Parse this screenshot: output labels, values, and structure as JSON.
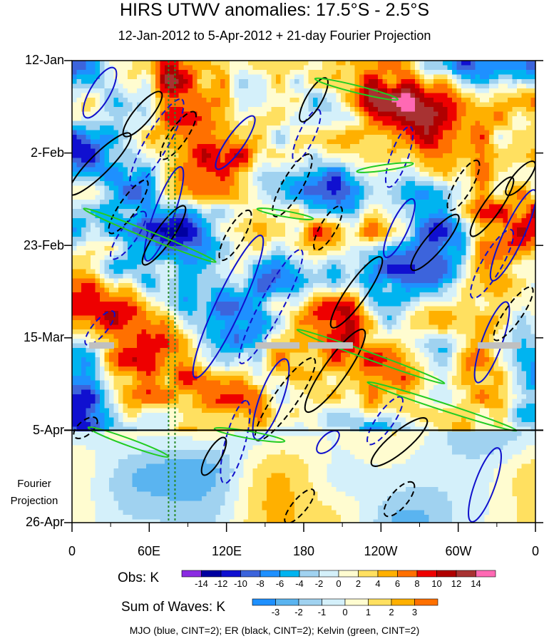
{
  "chart_data": {
    "type": "heatmap",
    "title": "HIRS UTWV anomalies: 17.5°S - 2.5°S",
    "subtitle": "12-Jan-2012 to 5-Apr-2012 + 21-day Fourier Projection",
    "y_tick_labels": [
      "12-Jan",
      "2-Feb",
      "23-Feb",
      "15-Mar",
      "5-Apr",
      "26-Apr"
    ],
    "x_tick_labels": [
      "0",
      "60E",
      "120E",
      "180",
      "120W",
      "60W",
      "0"
    ],
    "x_range_deg": [
      0,
      360
    ],
    "time_range_days": [
      0,
      105
    ],
    "observation_end_day": 84,
    "projection_label": [
      "Fourier",
      "Projection"
    ],
    "obs_colorbar": {
      "title": "Obs: K",
      "levels": [
        "-14",
        "-12",
        "-10",
        "-8",
        "-6",
        "-4",
        "-2",
        "0",
        "2",
        "4",
        "6",
        "8",
        "10",
        "12",
        "14"
      ],
      "colors": [
        "#8a2be2",
        "#0000a0",
        "#1010d0",
        "#3c64dc",
        "#1e90ff",
        "#00b4f0",
        "#a0d2f0",
        "#d4f0fa",
        "#fffcd0",
        "#ffe060",
        "#ffb000",
        "#ff7000",
        "#ee0000",
        "#b00000",
        "#a83232",
        "#ff69b4"
      ]
    },
    "waves_colorbar": {
      "title": "Sum of Waves: K",
      "levels": [
        "-3",
        "-2",
        "-1",
        "0",
        "1",
        "2",
        "3"
      ],
      "colors": [
        "#1e90ff",
        "#5ab4f0",
        "#a0d2f0",
        "#d4f0fa",
        "#fffcd0",
        "#ffe060",
        "#ffb000",
        "#ff7000"
      ]
    },
    "contours_note": "MJO (blue, CINT=2); ER (black, CINT=2); Kelvin (green, CINT=2)",
    "vertical_reference_lines_deg": [
      75,
      80
    ]
  }
}
